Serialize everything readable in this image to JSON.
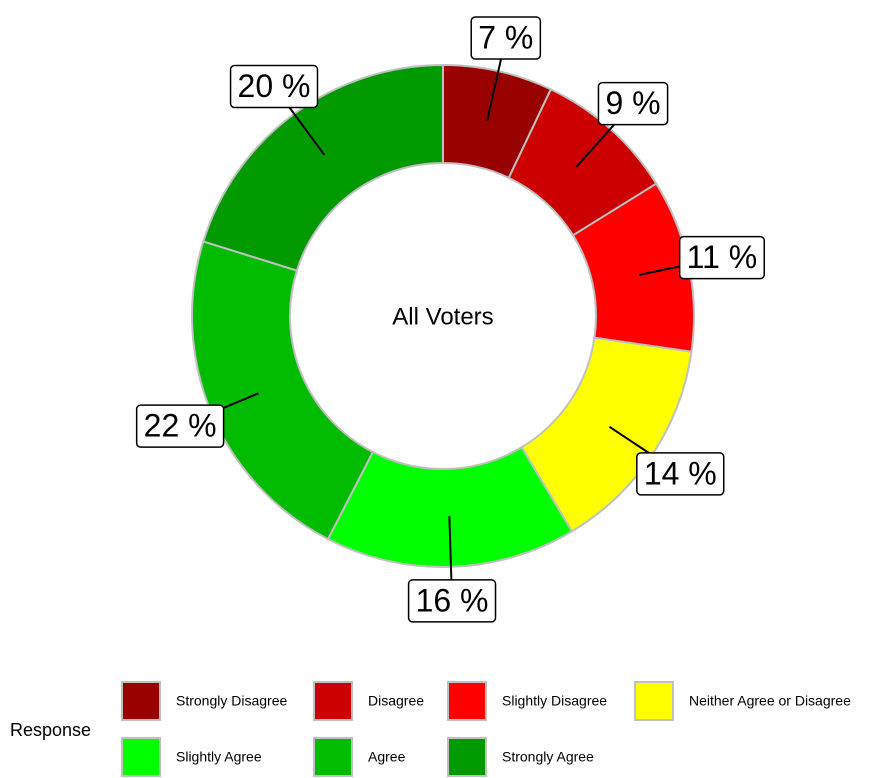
{
  "chart_data": {
    "type": "donut",
    "center_label": "All Voters",
    "legend_title": "Response",
    "categories": [
      "Strongly Disagree",
      "Disagree",
      "Slightly Disagree",
      "Neither Agree or Disagree",
      "Slightly Agree",
      "Agree",
      "Strongly Agree"
    ],
    "values": [
      7,
      9,
      11,
      14,
      16,
      22,
      20
    ],
    "value_labels": [
      "7 %",
      "9 %",
      "11 %",
      "14 %",
      "16 %",
      "22 %",
      "20 %"
    ],
    "colors": [
      "#990000",
      "#cc0000",
      "#ff0000",
      "#ffff00",
      "#00ff00",
      "#00bb00",
      "#009900"
    ],
    "legend": "bottom"
  }
}
